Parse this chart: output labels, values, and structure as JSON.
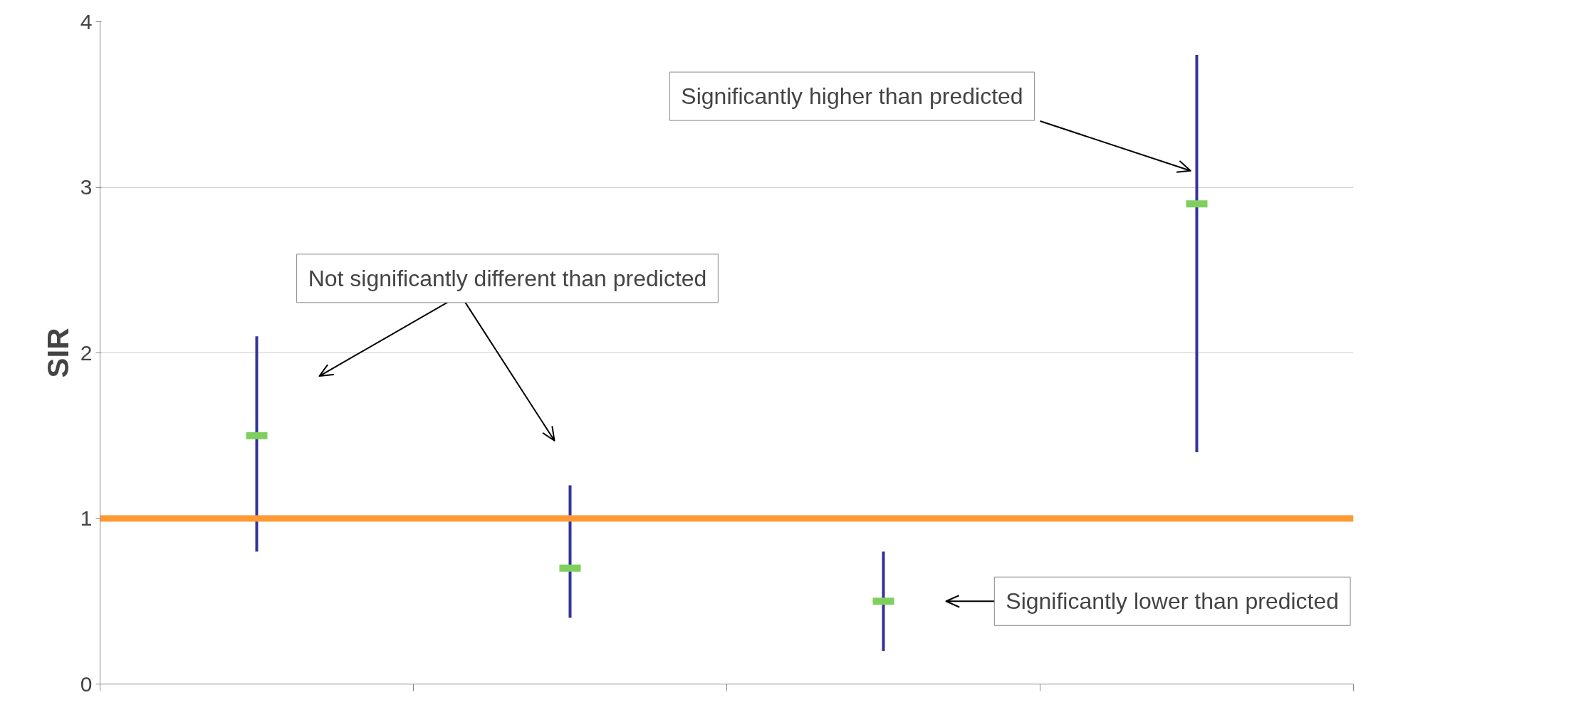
{
  "chart_data": {
    "type": "scatter",
    "ylabel": "SIR",
    "categories": [
      null,
      null,
      null,
      null
    ],
    "values": [
      1.5,
      0.7,
      0.5,
      2.9
    ],
    "errors": [
      [
        0.8,
        2.1
      ],
      [
        0.4,
        1.2
      ],
      [
        0.2,
        0.8
      ],
      [
        1.4,
        3.8
      ]
    ],
    "color": "#7fcf5f",
    "ylim": [
      0,
      4
    ],
    "yticks": [
      0,
      1,
      2,
      3,
      4
    ],
    "grid": "y",
    "tick_labels": "y",
    "ref_lines": [
      {
        "axis": "y",
        "value": 1,
        "color": "#ff9933"
      }
    ],
    "annotations": [
      "Significantly higher than predicted",
      "Not significantly different than predicted",
      "Significantly lower than predicted"
    ]
  }
}
